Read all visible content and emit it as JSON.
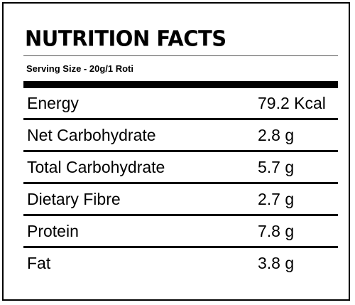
{
  "label": {
    "title": "NUTRITION FACTS",
    "serving_size": "Serving Size - 20g/1 Roti",
    "rows": [
      {
        "name": "Energy",
        "value": "79.2 Kcal"
      },
      {
        "name": "Net Carbohydrate",
        "value": "2.8 g"
      },
      {
        "name": "Total Carbohydrate",
        "value": "5.7 g"
      },
      {
        "name": "Dietary Fibre",
        "value": "2.7 g"
      },
      {
        "name": "Protein",
        "value": "7.8 g"
      },
      {
        "name": "Fat",
        "value": "3.8 g"
      }
    ]
  }
}
